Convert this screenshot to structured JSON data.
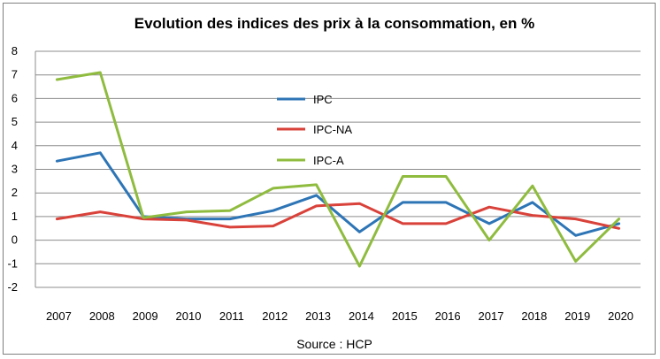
{
  "chart_data": {
    "type": "line",
    "title": "Evolution des indices des prix à la consommation, en %",
    "source": "Source : HCP",
    "x": [
      "2007",
      "2008",
      "2009",
      "2010",
      "2011",
      "2012",
      "2013",
      "2014",
      "2015",
      "2016",
      "2017",
      "2018",
      "2019",
      "2020"
    ],
    "ylim": [
      -2,
      8
    ],
    "yticks": [
      8,
      7,
      6,
      5,
      4,
      3,
      2,
      1,
      0,
      -1,
      -2
    ],
    "grid": "horizontal",
    "legend_position": "inside-center-top",
    "series": [
      {
        "name": "IPC",
        "color": "#2e75b6",
        "values": [
          3.35,
          3.7,
          1.0,
          0.9,
          0.9,
          1.25,
          1.9,
          0.35,
          1.6,
          1.6,
          0.7,
          1.6,
          0.2,
          0.7
        ]
      },
      {
        "name": "IPC-NA",
        "color": "#d9423a",
        "values": [
          0.9,
          1.2,
          0.9,
          0.85,
          0.55,
          0.6,
          1.45,
          1.55,
          0.7,
          0.7,
          1.4,
          1.05,
          0.9,
          0.5
        ]
      },
      {
        "name": "IPC-A",
        "color": "#8fbc3f",
        "values": [
          6.8,
          7.1,
          0.95,
          1.2,
          1.25,
          2.2,
          2.35,
          -1.1,
          2.7,
          2.7,
          0.0,
          2.3,
          -0.9,
          0.9
        ]
      }
    ]
  }
}
